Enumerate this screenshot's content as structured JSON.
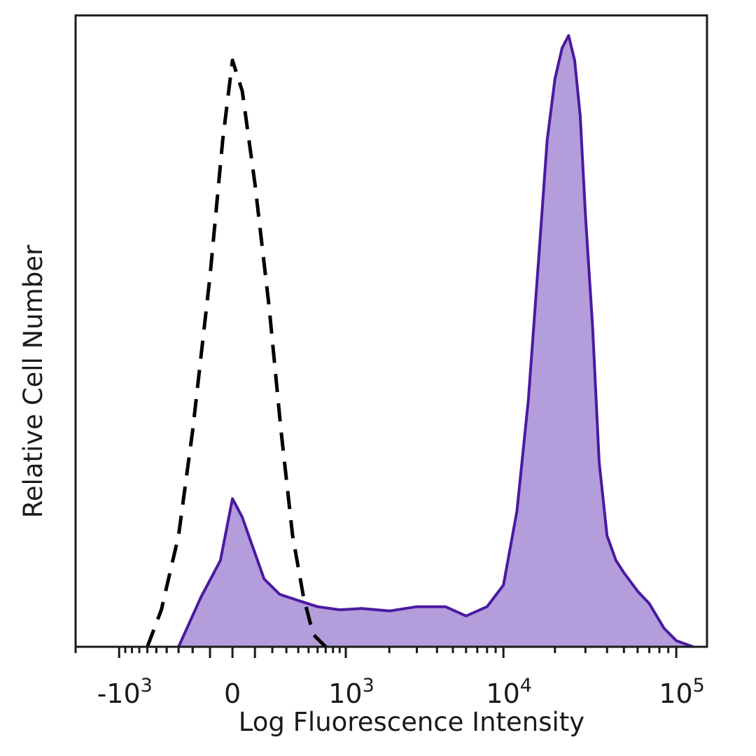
{
  "chart_data": {
    "type": "area",
    "xlabel": "Log Fluorescence Intensity",
    "ylabel": "Relative Cell Number",
    "x_scale": "biexponential",
    "xlim": [
      -2000,
      150000
    ],
    "ylim": [
      0,
      100
    ],
    "x_ticks": [
      {
        "value": -1000,
        "base": "-10",
        "exp": "3"
      },
      {
        "value": 0,
        "base": "0",
        "exp": ""
      },
      {
        "value": 1000,
        "base": "10",
        "exp": "3"
      },
      {
        "value": 10000,
        "base": "10",
        "exp": "4"
      },
      {
        "value": 100000,
        "base": "10",
        "exp": "5"
      }
    ],
    "colors": {
      "stained_line": "#4b1aa0",
      "stained_fill": "#b39ddb",
      "control_line": "#000000"
    },
    "series": [
      {
        "style": "filled-solid",
        "x": [
          -300,
          -150,
          -50,
          0,
          40,
          80,
          150,
          250,
          400,
          600,
          900,
          1300,
          2000,
          3000,
          4500,
          6000,
          8000,
          10000,
          12000,
          14000,
          16000,
          18000,
          20000,
          22000,
          24000,
          26000,
          28000,
          30000,
          33000,
          36000,
          40000,
          45000,
          50000,
          60000,
          70000,
          85000,
          100000,
          125000
        ],
        "values": [
          0,
          8,
          14,
          24,
          21,
          17,
          11,
          8.5,
          7.5,
          6.5,
          6,
          6.2,
          5.8,
          6.5,
          6.5,
          5,
          6.5,
          10,
          22,
          40,
          62,
          82,
          92,
          97,
          99,
          95,
          86,
          70,
          52,
          30,
          18,
          14,
          12,
          9,
          7,
          3,
          1,
          0
        ]
      },
      {
        "style": "dashed",
        "x": [
          -600,
          -450,
          -300,
          -200,
          -100,
          -40,
          0,
          40,
          100,
          180,
          260,
          350,
          450,
          550,
          700
        ],
        "values": [
          0,
          6,
          18,
          35,
          60,
          82,
          95,
          90,
          75,
          55,
          35,
          18,
          8,
          2,
          0
        ]
      }
    ]
  }
}
